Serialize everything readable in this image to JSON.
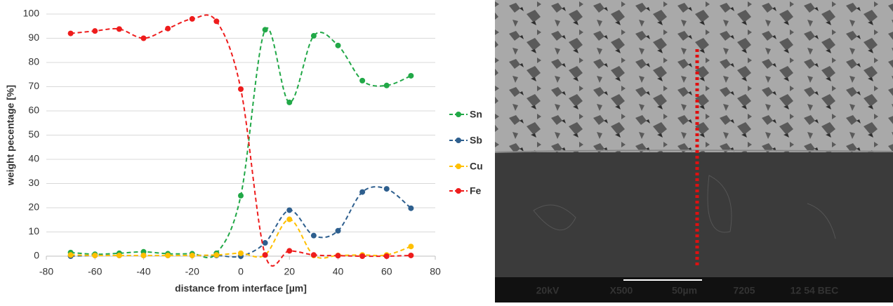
{
  "chart_data": {
    "type": "line",
    "x_label": "distance from interface [µm]",
    "y_label": "weight pecentage [%]",
    "x": [
      -70,
      -60,
      -50,
      -40,
      -30,
      -20,
      -10,
      0,
      10,
      20,
      30,
      40,
      50,
      60,
      70
    ],
    "series": [
      {
        "name": "Sn",
        "color": "#21a847",
        "values": [
          1.5,
          0.8,
          1.2,
          1.8,
          1.0,
          1.0,
          1.2,
          25,
          93.5,
          63.5,
          91,
          87,
          72.5,
          70.5,
          74.5
        ]
      },
      {
        "name": "Sb",
        "color": "#2e5f8e",
        "values": [
          0,
          0.3,
          0.3,
          0.3,
          0.3,
          0.3,
          0.3,
          0,
          5.5,
          19,
          8.5,
          10.5,
          26.5,
          27.8,
          19.8
        ]
      },
      {
        "name": "Cu",
        "color": "#ffc000",
        "values": [
          0.5,
          0.3,
          0.3,
          0.3,
          0.3,
          0.3,
          0.5,
          1.2,
          0.5,
          15.2,
          0.3,
          0.3,
          0.5,
          0.5,
          4
        ]
      },
      {
        "name": "Fe",
        "color": "#ee1c1c",
        "values": [
          92,
          93,
          93.8,
          90,
          94,
          98,
          97,
          69,
          0.5,
          2.2,
          0.5,
          0.2,
          0,
          0,
          0.3
        ]
      }
    ],
    "xlim": [
      -80,
      80
    ],
    "xticks": [
      -80,
      -60,
      -40,
      -20,
      0,
      20,
      40,
      60,
      80
    ],
    "ylim": [
      0,
      100
    ],
    "yticks": [
      0,
      10,
      20,
      30,
      40,
      50,
      60,
      70,
      80,
      90,
      100
    ],
    "grid": true,
    "legend": "right",
    "smooth": true,
    "dashed": true
  },
  "sem_image": {
    "labels": [
      "20kV",
      "X500",
      "50µm",
      "7205",
      "12 54 BEC"
    ]
  }
}
